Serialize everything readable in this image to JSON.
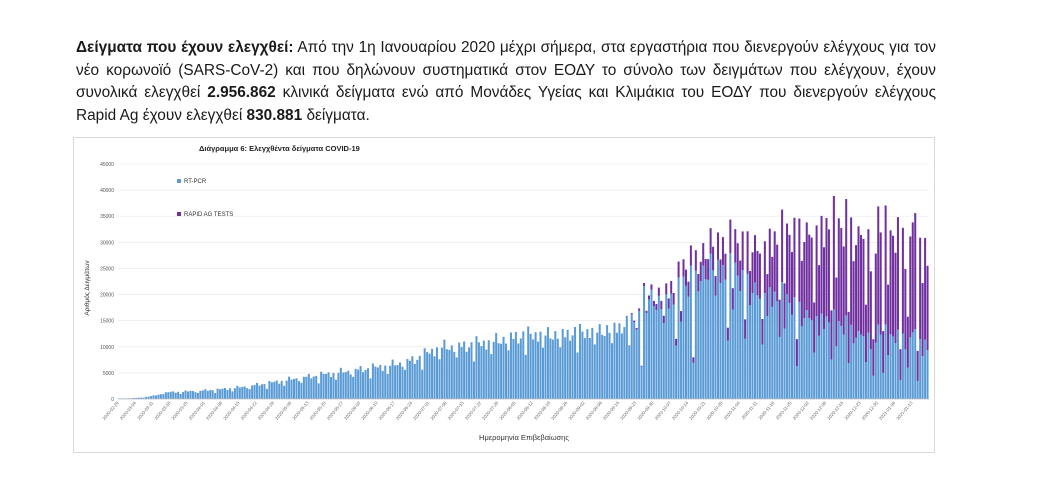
{
  "paragraph": {
    "lead": "Δείγματα που έχουν ελεγχθεί:",
    "t1": " Από την 1η Ιανουαρίου 2020 μέχρι σήμερα, στα εργαστήρια που διενεργούν ελέγχους για τον νέο κορωνοϊό (SARS-CoV-2) και που δηλώνουν συστηματικά στον ΕΟΔΥ το σύνολο των δειγμάτων που ελέγχουν, έχουν συνολικά ελεγχθεί ",
    "n1": "2.956.862",
    "t2": " κλινικά δείγματα ενώ από Μονάδες Υγείας και Κλιμάκια του ΕΟΔΥ που διενεργούν ελέγχους Rapid Ag έχουν ελεγχθεί ",
    "n2": "830.881",
    "t3": " δείγματα."
  },
  "chart_data": {
    "type": "bar",
    "stacked": true,
    "title": "Διάγραμμα 6: Ελεγχθέντα δείγματα COVID-19",
    "xlabel": "Ημερομηνία Επιβεβαίωσης",
    "ylabel": "Αριθμός Δειγμάτων",
    "ylim": [
      0,
      45000
    ],
    "yticks": [
      0,
      5000,
      10000,
      15000,
      20000,
      25000,
      30000,
      35000,
      40000,
      45000
    ],
    "grid": true,
    "legend_position": "top-left",
    "date_start": "2020-02-26",
    "date_end": "2021-01-19",
    "x_tick_labels": [
      "2020-02-26",
      "2020-03-04",
      "2020-03-11",
      "2020-03-18",
      "2020-03-25",
      "2020-04-01",
      "2020-04-08",
      "2020-04-15",
      "2020-04-22",
      "2020-04-29",
      "2020-05-06",
      "2020-05-13",
      "2020-05-20",
      "2020-05-27",
      "2020-06-03",
      "2020-06-10",
      "2020-06-17",
      "2020-06-24",
      "2020-07-01",
      "2020-07-08",
      "2020-07-15",
      "2020-07-22",
      "2020-07-29",
      "2020-08-05",
      "2020-08-12",
      "2020-08-19",
      "2020-08-26",
      "2020-09-02",
      "2020-09-09",
      "2020-09-16",
      "2020-09-23",
      "2020-09-30",
      "2020-10-07",
      "2020-10-14",
      "2020-10-21",
      "2020-10-28",
      "2020-11-04",
      "2020-11-11",
      "2020-11-18",
      "2020-11-25",
      "2020-12-02",
      "2020-12-09",
      "2020-12-16",
      "2020-12-23",
      "2020-12-30",
      "2021-01-06",
      "2021-01-13"
    ],
    "series": [
      {
        "name": "RT-PCR",
        "color": "#5b9bd5",
        "anchors": [
          [
            0,
            100
          ],
          [
            5,
            150
          ],
          [
            10,
            300
          ],
          [
            15,
            700
          ],
          [
            20,
            1300
          ],
          [
            30,
            1500
          ],
          [
            40,
            1800
          ],
          [
            50,
            2300
          ],
          [
            60,
            3000
          ],
          [
            70,
            3800
          ],
          [
            80,
            4500
          ],
          [
            90,
            5200
          ],
          [
            100,
            5800
          ],
          [
            110,
            6500
          ],
          [
            120,
            7600
          ],
          [
            130,
            10000
          ],
          [
            140,
            10200
          ],
          [
            150,
            11000
          ],
          [
            160,
            12000
          ],
          [
            170,
            12500
          ],
          [
            180,
            12500
          ],
          [
            190,
            13000
          ],
          [
            200,
            13500
          ],
          [
            210,
            15000
          ],
          [
            214,
            20500
          ],
          [
            220,
            18000
          ],
          [
            230,
            22000
          ],
          [
            240,
            25500
          ],
          [
            250,
            24500
          ],
          [
            260,
            21000
          ],
          [
            270,
            19500
          ],
          [
            280,
            16500
          ],
          [
            290,
            15000
          ],
          [
            300,
            13000
          ],
          [
            310,
            12500
          ],
          [
            320,
            12000
          ],
          [
            328,
            11000
          ]
        ]
      },
      {
        "name": "RAPID AG TESTS",
        "color": "#7030a0",
        "anchors": [
          [
            0,
            0
          ],
          [
            205,
            0
          ],
          [
            214,
            600
          ],
          [
            225,
            2500
          ],
          [
            240,
            4500
          ],
          [
            250,
            6000
          ],
          [
            260,
            9500
          ],
          [
            270,
            12500
          ],
          [
            280,
            17000
          ],
          [
            290,
            19000
          ],
          [
            300,
            20000
          ],
          [
            310,
            20000
          ],
          [
            320,
            19500
          ],
          [
            328,
            19000
          ]
        ]
      }
    ],
    "dips": [
      [
        212,
        0.35
      ],
      [
        226,
        0.5
      ],
      [
        233,
        0.3
      ],
      [
        247,
        0.45
      ],
      [
        254,
        0.5
      ],
      [
        261,
        0.5
      ],
      [
        268,
        0.6
      ],
      [
        275,
        0.35
      ],
      [
        282,
        0.55
      ],
      [
        289,
        0.5
      ],
      [
        296,
        0.5
      ],
      [
        303,
        0.55
      ],
      [
        306,
        0.35
      ],
      [
        310,
        0.4
      ],
      [
        317,
        0.3
      ],
      [
        320,
        0.5
      ],
      [
        324,
        0.3
      ]
    ],
    "peaks": [
      [
        213,
        1.08
      ],
      [
        232,
        1.08
      ],
      [
        235,
        1.08
      ],
      [
        295,
        1.06
      ],
      [
        308,
        1.1
      ],
      [
        322,
        1.12
      ],
      [
        323,
        1.22
      ],
      [
        325,
        1.02
      ]
    ]
  }
}
